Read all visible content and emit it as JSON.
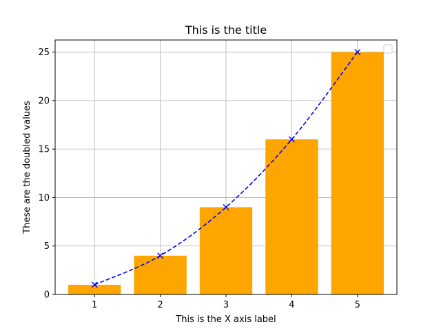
{
  "chart_data": {
    "type": "bar",
    "title": "This is the title",
    "xlabel": "This is the X axis label",
    "ylabel": "These are the doubled values",
    "x": [
      1,
      2,
      3,
      4,
      5
    ],
    "categories": [
      "1",
      "2",
      "3",
      "4",
      "5"
    ],
    "xlim": [
      0.4,
      5.6
    ],
    "ylim": [
      0,
      26.25
    ],
    "yticks": [
      0,
      5,
      10,
      15,
      20,
      25
    ],
    "grid": true,
    "legend": "upper-right",
    "series": [
      {
        "kind": "bar",
        "values": [
          1,
          4,
          9,
          16,
          25
        ],
        "color": "#FFA500"
      },
      {
        "kind": "line",
        "values": [
          1,
          4,
          9,
          16,
          25
        ],
        "color": "#0000FF",
        "linestyle": "dashed",
        "marker": "x"
      }
    ]
  }
}
